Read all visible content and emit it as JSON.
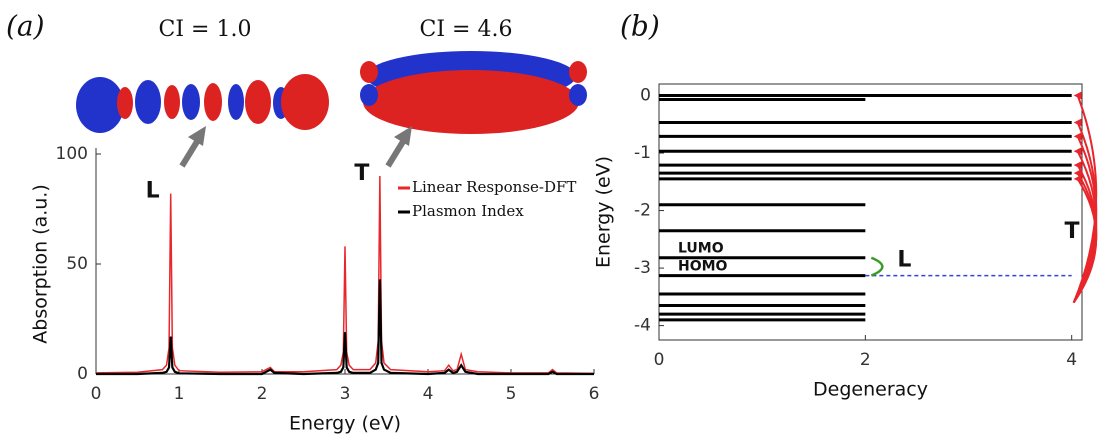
{
  "chart_data": [
    {
      "type": "line",
      "panel_label": "(a)",
      "xlabel": "Energy (eV)",
      "ylabel": "Absorption (a.u.)",
      "x": [
        0,
        0.5,
        0.8,
        0.85,
        0.88,
        0.9,
        0.92,
        0.95,
        1.0,
        1.5,
        2.0,
        2.05,
        2.1,
        2.15,
        2.5,
        2.9,
        2.95,
        2.98,
        3.0,
        3.02,
        3.05,
        3.1,
        3.3,
        3.37,
        3.4,
        3.42,
        3.44,
        3.47,
        3.55,
        4.0,
        4.2,
        4.25,
        4.3,
        4.35,
        4.4,
        4.45,
        4.6,
        5.0,
        5.45,
        5.5,
        5.55,
        6.0
      ],
      "series": [
        {
          "name": "Linear Response-DFT",
          "color": "#e8262b",
          "values": [
            0.5,
            0.8,
            2,
            4,
            12,
            82,
            12,
            4,
            1.5,
            0.8,
            1,
            2,
            3,
            1,
            1,
            2,
            4,
            10,
            58,
            10,
            4,
            2,
            2,
            5,
            15,
            90,
            15,
            5,
            2,
            1,
            1.5,
            4,
            1.5,
            2,
            9,
            2,
            1,
            0.5,
            0.5,
            2,
            0.5,
            0.3
          ]
        },
        {
          "name": "Plasmon Index",
          "color": "#000000",
          "values": [
            0,
            0,
            0.5,
            1,
            3,
            17,
            3,
            1,
            0.3,
            0,
            0,
            1,
            2,
            0.5,
            0,
            0.5,
            1,
            3,
            19,
            3,
            1,
            0.5,
            0.5,
            2,
            5,
            43,
            5,
            2,
            0.5,
            0,
            0.5,
            2,
            0.5,
            1,
            4,
            1,
            0,
            0,
            0,
            1,
            0,
            0
          ]
        }
      ],
      "xlim": [
        0,
        6
      ],
      "ylim": [
        0,
        100
      ],
      "xticks": [
        0,
        1,
        2,
        3,
        4,
        5,
        6
      ],
      "yticks": [
        0,
        50,
        100
      ],
      "annotations": [
        {
          "text": "L",
          "x": 0.9,
          "y": 82
        },
        {
          "text": "T",
          "x": 3.42,
          "y": 90
        }
      ],
      "orbital_labels": [
        "CI = 1.0",
        "CI = 4.6"
      ],
      "legend": "upper right"
    },
    {
      "type": "energy-levels",
      "panel_label": "(b)",
      "xlabel": "Degeneracy",
      "ylabel": "Energy (eV)",
      "energies": [
        0,
        -0.07,
        -0.47,
        -0.71,
        -0.97,
        -1.21,
        -1.35,
        -1.45,
        -1.9,
        -2.35,
        -2.82,
        -3.13,
        -3.45,
        -3.65,
        -3.8,
        -3.9
      ],
      "degeneracy": [
        4,
        2,
        4,
        4,
        4,
        4,
        4,
        4,
        2,
        2,
        2,
        2,
        2,
        2,
        2,
        2
      ],
      "xlim": [
        0,
        4.1
      ],
      "ylim": [
        -4.25,
        0.2
      ],
      "xticks": [
        0,
        2,
        4
      ],
      "yticks": [
        0,
        -1,
        -2,
        -3,
        -4
      ],
      "level_labels": [
        {
          "text": "LUMO",
          "level": 10
        },
        {
          "text": "HOMO",
          "level": 11
        }
      ],
      "annotations": [
        "L",
        "T"
      ]
    }
  ]
}
